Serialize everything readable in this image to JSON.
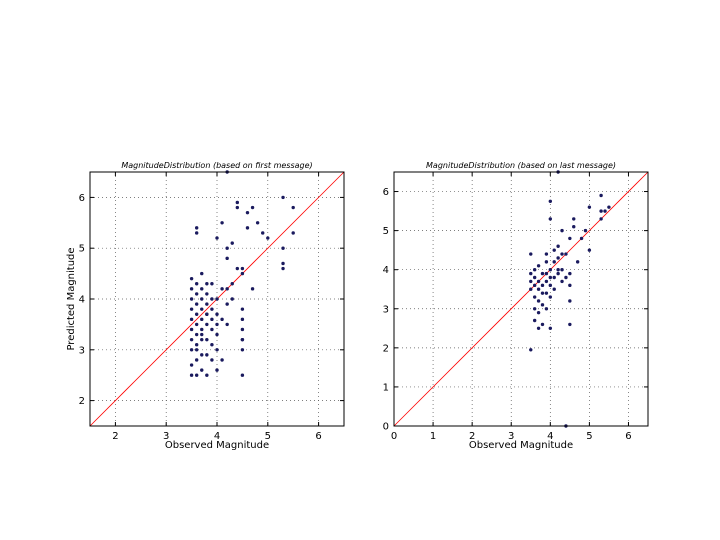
{
  "chart_data": [
    {
      "type": "scatter",
      "title": "MagnitudeDistribution (based on first message)",
      "xlabel": "Observed Magnitude",
      "ylabel": "Predicted Magnitude",
      "xlim": [
        1.5,
        6.5
      ],
      "ylim": [
        1.5,
        6.5
      ],
      "xticks": [
        2,
        3,
        4,
        5,
        6
      ],
      "yticks": [
        2,
        3,
        4,
        5,
        6
      ],
      "grid": true,
      "reference_line": "y = x",
      "colors": {
        "points": "#1a1a5e",
        "reference_line": "#ff0000",
        "grid": "#555555"
      },
      "series": [
        {
          "x": [
            3.5,
            3.5,
            3.5,
            3.5,
            3.5,
            3.5,
            3.5,
            3.5,
            3.5,
            3.5,
            3.6,
            3.6,
            3.6,
            3.6,
            3.6,
            3.6,
            3.6,
            3.6,
            3.6,
            3.6,
            3.6,
            3.7,
            3.7,
            3.7,
            3.7,
            3.7,
            3.7,
            3.7,
            3.7,
            3.7,
            3.7,
            3.8,
            3.8,
            3.8,
            3.8,
            3.8,
            3.8,
            3.8,
            3.8,
            3.9,
            3.9,
            3.9,
            3.9,
            3.9,
            3.9,
            3.9,
            4.0,
            4.0,
            4.0,
            4.0,
            4.0,
            4.0,
            4.0,
            4.1,
            4.1,
            4.1,
            4.1,
            4.2,
            4.2,
            4.2,
            4.2,
            4.2,
            4.3,
            4.3,
            4.3,
            4.4,
            4.4,
            4.4,
            4.5,
            4.5,
            4.5,
            4.5,
            4.5,
            4.5,
            4.5,
            4.5,
            4.6,
            4.6,
            4.7,
            4.7,
            4.8,
            4.9,
            5.0,
            5.3,
            5.3,
            5.3,
            5.3,
            5.5,
            5.5,
            3.6,
            4.2,
            3.8,
            4.5
          ],
          "y": [
            2.5,
            2.7,
            3.0,
            3.2,
            3.4,
            3.6,
            3.8,
            4.0,
            4.2,
            4.4,
            2.5,
            2.8,
            3.1,
            3.3,
            3.5,
            3.7,
            3.9,
            4.1,
            4.3,
            5.3,
            3.0,
            2.6,
            2.9,
            3.2,
            3.4,
            3.6,
            3.8,
            4.0,
            4.2,
            4.5,
            3.3,
            2.5,
            2.9,
            3.2,
            3.5,
            3.7,
            3.9,
            4.1,
            4.3,
            2.8,
            3.1,
            3.4,
            3.6,
            3.8,
            4.0,
            4.3,
            2.6,
            3.0,
            3.3,
            3.5,
            3.7,
            4.0,
            5.2,
            2.8,
            3.6,
            4.2,
            5.5,
            3.9,
            4.2,
            4.8,
            5.0,
            6.5,
            4.0,
            4.3,
            5.1,
            4.6,
            5.8,
            5.9,
            2.5,
            3.0,
            3.2,
            3.4,
            3.6,
            3.8,
            4.5,
            4.6,
            5.4,
            5.7,
            4.2,
            5.8,
            5.5,
            5.3,
            5.2,
            6.0,
            4.7,
            4.6,
            5.0,
            5.8,
            5.3,
            5.4,
            3.5,
            3.7,
            3.2
          ]
        }
      ]
    },
    {
      "type": "scatter",
      "title": "MagnitudeDistribution (based on last message)",
      "xlabel": "Observed Magnitude",
      "ylabel": "",
      "xlim": [
        0,
        6.5
      ],
      "ylim": [
        0,
        6.5
      ],
      "xticks": [
        0,
        1,
        2,
        3,
        4,
        5,
        6
      ],
      "yticks": [
        0,
        1,
        2,
        3,
        4,
        5,
        6
      ],
      "grid": true,
      "reference_line": "y = x",
      "colors": {
        "points": "#1a1a5e",
        "reference_line": "#ff0000",
        "grid": "#555555"
      },
      "series": [
        {
          "x": [
            3.5,
            3.5,
            3.5,
            3.5,
            3.5,
            3.6,
            3.6,
            3.6,
            3.6,
            3.6,
            3.6,
            3.7,
            3.7,
            3.7,
            3.7,
            3.7,
            3.7,
            3.8,
            3.8,
            3.8,
            3.8,
            3.8,
            3.9,
            3.9,
            3.9,
            3.9,
            3.9,
            3.9,
            4.0,
            4.0,
            4.0,
            4.0,
            4.0,
            4.0,
            4.1,
            4.1,
            4.1,
            4.1,
            4.2,
            4.2,
            4.2,
            4.2,
            4.3,
            4.3,
            4.3,
            4.3,
            4.4,
            4.4,
            4.5,
            4.5,
            4.5,
            4.5,
            4.5,
            4.6,
            4.6,
            4.7,
            4.8,
            4.9,
            5.0,
            5.0,
            5.3,
            5.3,
            5.3,
            5.4,
            5.5,
            4.0,
            4.2,
            4.4
          ],
          "y": [
            1.95,
            3.5,
            3.7,
            3.9,
            4.4,
            2.7,
            3.0,
            3.3,
            3.6,
            3.8,
            4.0,
            2.5,
            2.9,
            3.2,
            3.5,
            3.7,
            4.1,
            2.6,
            3.1,
            3.4,
            3.6,
            3.9,
            3.0,
            3.4,
            3.7,
            3.9,
            4.2,
            4.4,
            2.5,
            3.3,
            3.6,
            3.8,
            4.0,
            5.3,
            3.5,
            3.8,
            4.2,
            4.5,
            3.9,
            4.3,
            6.5,
            4.6,
            3.7,
            4.0,
            4.4,
            5.0,
            3.8,
            4.4,
            2.6,
            3.2,
            3.6,
            3.9,
            4.8,
            5.1,
            5.3,
            4.2,
            4.8,
            5.0,
            4.5,
            5.6,
            5.3,
            5.5,
            5.9,
            5.5,
            5.6,
            5.75,
            4.0,
            0.0
          ]
        }
      ]
    }
  ]
}
